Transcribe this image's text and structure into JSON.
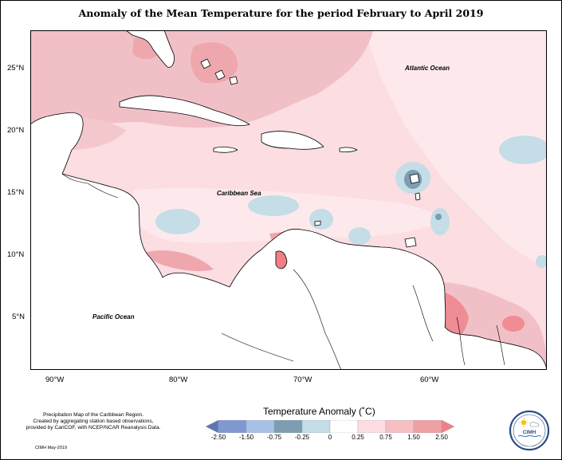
{
  "map": {
    "title": "Anomaly of the Mean Temperature for the period February to April 2019",
    "region_labels": {
      "atlantic": "Atlantic Ocean",
      "caribbean": "Caribbean Sea",
      "pacific": "Pacific Ocean"
    },
    "lat_ticks": [
      "25°N",
      "20°N",
      "15°N",
      "10°N",
      "5°N"
    ],
    "lon_ticks": [
      "90°W",
      "80°W",
      "70°W",
      "60°W"
    ]
  },
  "legend": {
    "title": "Temperature Anomaly (˚C)",
    "labels": [
      "-2.50",
      "-1.50",
      "-0.75",
      "-0.25",
      "0",
      "0.25",
      "0.75",
      "1.50",
      "2.50"
    ],
    "colors": [
      "#5d77b0",
      "#7f98cf",
      "#a7c1e6",
      "#7d9db0",
      "#c4dde6",
      "#ffffff",
      "#fbdde2",
      "#f6bfc4",
      "#efa1a6",
      "#f07f86"
    ]
  },
  "footer": {
    "line1": "Precipitation Map of the Caribbean Region.",
    "line2": "Created by aggregating station based observations,",
    "line3": "provided by CariCOF, with NCEP/NCAR Reanalysis Data.",
    "date": "CIMH May-2019"
  },
  "logo": {
    "text": "CIMH"
  }
}
